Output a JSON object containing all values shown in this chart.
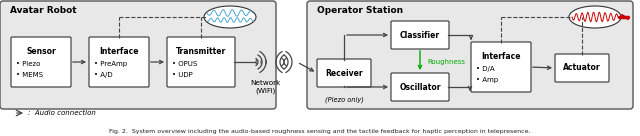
{
  "fig_width": 6.4,
  "fig_height": 1.36,
  "dpi": 100,
  "bg_color": "#f0f0f0",
  "box_color": "#ffffff",
  "box_edge": "#333333",
  "arrow_color": "#444444",
  "green_color": "#00aa00",
  "red_color": "#cc0000",
  "blue_color": "#3399cc",
  "caption": "Fig. 2.  System overview including the audio-based roughness sensing and the tactile feedback for haptic perception in telepresence.",
  "avatar_label": "Avatar Robot",
  "operator_label": "Operator Station",
  "legend_text": "→ : Audio connection",
  "network_text": "Network\n(WiFi)",
  "piezo_only_text": "(Piezo only)",
  "roughness_text": "Roughness",
  "sensor_title": "Sensor",
  "sensor_items": [
    "Piezo",
    "MEMS"
  ],
  "interface1_title": "Interface",
  "interface1_items": [
    "PreAmp",
    "A/D"
  ],
  "transmitter_title": "Transmitter",
  "transmitter_items": [
    "OPUS",
    "UDP"
  ],
  "receiver_title": "Receiver",
  "classifier_title": "Classifier",
  "oscillator_title": "Oscillator",
  "interface2_title": "Interface",
  "interface2_items": [
    "D/A",
    "Amp"
  ],
  "actuator_title": "Actuator"
}
